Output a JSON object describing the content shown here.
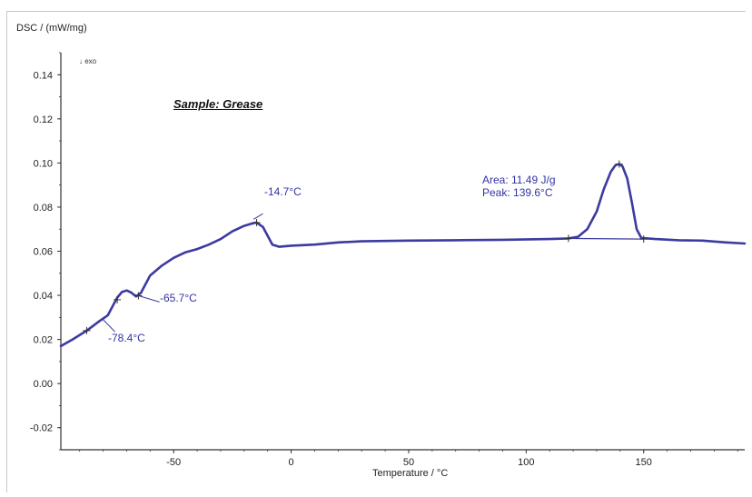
{
  "chart_data": {
    "type": "line",
    "title": "Sample: Grease",
    "xlabel": "Temperature / °C",
    "ylabel": "DSC / (mW/mg)",
    "direction_marker": "↓ exo",
    "xlim": [
      -98,
      193
    ],
    "ylim": [
      -0.03,
      0.15
    ],
    "x_ticks": [
      -50,
      0,
      50,
      100,
      150
    ],
    "y_ticks": [
      -0.02,
      0.0,
      0.02,
      0.04,
      0.06,
      0.08,
      0.1,
      0.12,
      0.14
    ],
    "x_tick_labels": [
      "-50",
      "0",
      "50",
      "100",
      "150"
    ],
    "y_tick_labels": [
      "-0.02",
      "0.00",
      "0.02",
      "0.04",
      "0.06",
      "0.08",
      "0.10",
      "0.12",
      "0.14"
    ],
    "grid": false,
    "line_color": "#3b3ba0",
    "series": [
      {
        "x": [
          -98,
          -93,
          -87,
          -82,
          -78,
          -76,
          -74,
          -72,
          -70,
          -68,
          -66,
          -64,
          -62,
          -60,
          -55,
          -50,
          -45,
          -40,
          -35,
          -30,
          -25,
          -20,
          -17,
          -14.7,
          -12,
          -10,
          -8,
          -5,
          0,
          10,
          20,
          30,
          50,
          70,
          90,
          110,
          118,
          122,
          126,
          130,
          133,
          136,
          138,
          139.6,
          141,
          143,
          145,
          147,
          149,
          155,
          165,
          175,
          185,
          193
        ],
        "y": [
          0.017,
          0.02,
          0.024,
          0.028,
          0.031,
          0.035,
          0.039,
          0.0415,
          0.0422,
          0.0412,
          0.0395,
          0.041,
          0.045,
          0.049,
          0.0535,
          0.057,
          0.0595,
          0.061,
          0.063,
          0.0655,
          0.069,
          0.0715,
          0.0725,
          0.073,
          0.071,
          0.067,
          0.063,
          0.062,
          0.0625,
          0.063,
          0.064,
          0.0645,
          0.0648,
          0.065,
          0.0652,
          0.0655,
          0.0658,
          0.0665,
          0.07,
          0.078,
          0.088,
          0.096,
          0.099,
          0.0995,
          0.0985,
          0.093,
          0.082,
          0.07,
          0.066,
          0.0655,
          0.065,
          0.0648,
          0.064,
          0.0635
        ]
      }
    ],
    "markers": [
      {
        "x": -87,
        "y": 0.024
      },
      {
        "x": -74,
        "y": 0.038
      },
      {
        "x": -65,
        "y": 0.0398
      },
      {
        "x": -14.7,
        "y": 0.073
      },
      {
        "x": 118,
        "y": 0.0658
      },
      {
        "x": 139.6,
        "y": 0.0995
      },
      {
        "x": 150,
        "y": 0.0655
      }
    ],
    "baseline": {
      "x": [
        118,
        150
      ],
      "y": [
        0.0658,
        0.0655
      ]
    },
    "annotations": [
      {
        "text": "-78.4°C"
      },
      {
        "text": "-65.7°C"
      },
      {
        "text": "-14.7°C"
      },
      {
        "text": "Area: 11.49 J/g"
      },
      {
        "text": "Peak: 139.6°C"
      }
    ]
  }
}
